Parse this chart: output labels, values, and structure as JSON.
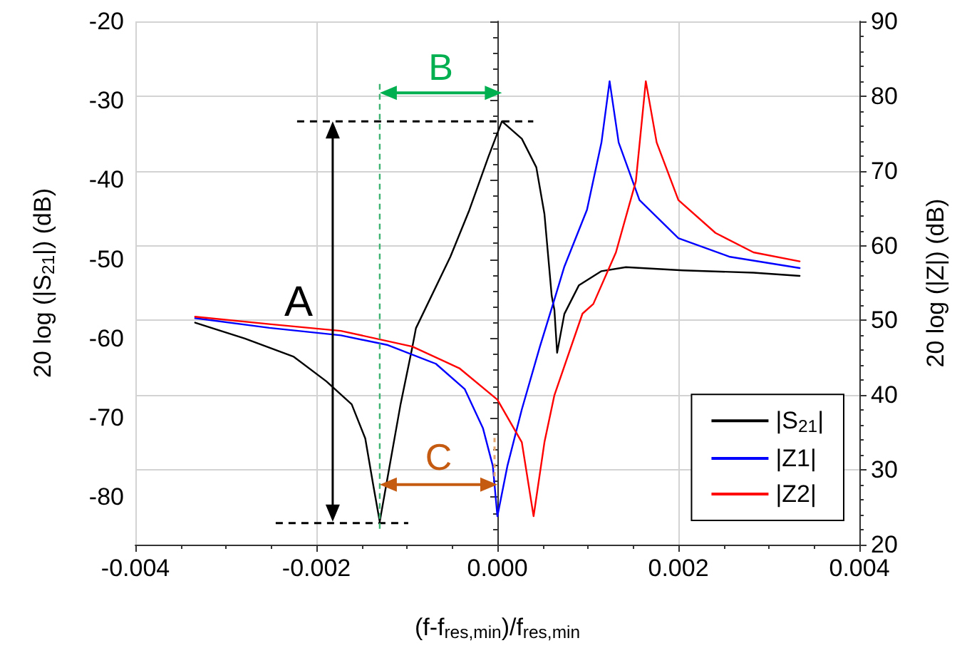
{
  "chart_data": {
    "type": "line",
    "xlabel": "(f-f$_{res,min}$)/f$_{res,min}$",
    "ylabel": "20 log (|S$_{21}$|) (dB)",
    "y2label": "20 log (|Z|) (dB)",
    "xlim": [
      -0.004,
      0.004
    ],
    "xticks": [
      -0.004,
      -0.002,
      {
        "value": 0,
        "label": "0.000"
      },
      0.002,
      0.004
    ],
    "ylim": [
      -86,
      -20
    ],
    "yticks": [
      -20,
      -30,
      -40,
      -50,
      -60,
      -70,
      -80
    ],
    "y2lim": [
      20,
      90
    ],
    "y2ticks": [
      20,
      30,
      40,
      50,
      60,
      70,
      80,
      90
    ],
    "grid": true,
    "legend": "bottom right",
    "line_style": "solid",
    "marker": "none",
    "series": [
      {
        "name": "|S$_{21}$|",
        "color": "#000000",
        "x": [
          -0.00334,
          -0.00279,
          -0.00225,
          -0.00189,
          -0.00161,
          -0.00146,
          -0.00137,
          -0.0013,
          -0.00121,
          -0.00107,
          -0.00094,
          -0.0009,
          -0.00052,
          -0.00031,
          -0.0001,
          5e-05,
          0.00027,
          0.00043,
          0.00052,
          0.0006,
          0.00063,
          0.00066,
          0.00074,
          0.0009,
          0.00115,
          0.00142,
          0.00205,
          0.00283,
          0.00334
        ],
        "values": [
          -58.0,
          -60.0,
          -62.3,
          -65.4,
          -68.3,
          -72.6,
          -78.6,
          -83.1,
          -77.3,
          -68.3,
          -61.1,
          -58.7,
          -49.7,
          -43.8,
          -37.1,
          -32.6,
          -34.8,
          -38.4,
          -44.3,
          -54.6,
          -56.4,
          -61.8,
          -56.9,
          -53.3,
          -51.5,
          -51.0,
          -51.4,
          -51.7,
          -52.1
        ]
      },
      {
        "name": "|Z1|",
        "color": "#0000ff",
        "axis": "y2",
        "x": [
          -0.00334,
          -0.00252,
          -0.00173,
          -0.00121,
          -0.00068,
          -0.00036,
          -0.00016,
          -5e-05,
          0,
          0.00011,
          0.00027,
          0.00047,
          0.00063,
          0.00074,
          0.00099,
          0.00115,
          0.00124,
          0.00134,
          0.00157,
          0.002,
          0.00257,
          0.00334
        ],
        "values": [
          50.3,
          49.0,
          48.0,
          46.7,
          44.2,
          40.8,
          35.6,
          30.5,
          23.8,
          30.5,
          38.1,
          46.5,
          52.8,
          57.2,
          64.8,
          73.8,
          82.0,
          73.8,
          66.1,
          61.0,
          58.5,
          57.0
        ]
      },
      {
        "name": "|Z2|",
        "color": "#ff0000",
        "axis": "y2",
        "x": [
          -0.00334,
          -0.00252,
          -0.00173,
          -0.00094,
          -0.00042,
          0,
          0.00027,
          0.0004,
          0.00052,
          0.00063,
          0.00094,
          0.00106,
          0.00131,
          0.00153,
          0.00164,
          0.00176,
          0.002,
          0.00241,
          0.00283,
          0.00334
        ],
        "values": [
          50.5,
          49.5,
          48.6,
          46.5,
          43.6,
          39.4,
          33.7,
          23.8,
          33.7,
          40.0,
          50.9,
          52.2,
          59.1,
          68.6,
          82.0,
          73.8,
          66.1,
          61.7,
          59.1,
          57.9
        ]
      }
    ],
    "ref_lines": [
      {
        "axis": "x",
        "value": -0.0013,
        "color": "#3cb371",
        "line_style": "dashed"
      }
    ],
    "annotations": [
      "A",
      "B",
      "C"
    ]
  }
}
